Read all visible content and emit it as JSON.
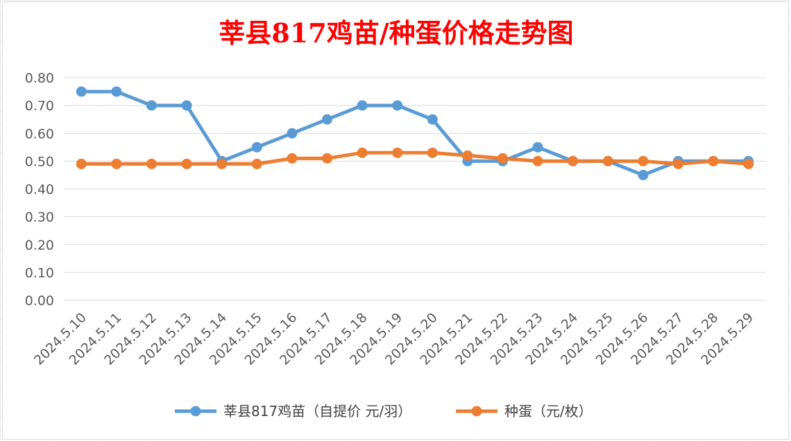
{
  "chart_data": {
    "type": "line",
    "title": "莘县817鸡苗/种蛋价格走势图",
    "title_color": "#ff0000",
    "categories": [
      "2024.5.10",
      "2024.5.11",
      "2024.5.12",
      "2024.5.13",
      "2024.5.14",
      "2024.5.15",
      "2024.5.16",
      "2024.5.17",
      "2024.5.18",
      "2024.5.19",
      "2024.5.20",
      "2024.5.21",
      "2024.5.22",
      "2024.5.23",
      "2024.5.24",
      "2024.5.25",
      "2024.5.26",
      "2024.5.27",
      "2024.5.28",
      "2024.5.29"
    ],
    "series": [
      {
        "name": "莘县817鸡苗（自提价 元/羽）",
        "color": "#5b9bd5",
        "values": [
          0.75,
          0.75,
          0.7,
          0.7,
          0.5,
          0.55,
          0.6,
          0.65,
          0.7,
          0.7,
          0.65,
          0.5,
          0.5,
          0.55,
          0.5,
          0.5,
          0.45,
          0.5,
          0.5,
          0.5
        ]
      },
      {
        "name": "种蛋（元/枚）",
        "color": "#ed7d31",
        "values": [
          0.49,
          0.49,
          0.49,
          0.49,
          0.49,
          0.49,
          0.51,
          0.51,
          0.53,
          0.53,
          0.53,
          0.52,
          0.51,
          0.5,
          0.5,
          0.5,
          0.5,
          0.49,
          0.5,
          0.49
        ]
      }
    ],
    "y_ticks": [
      "0.80",
      "0.70",
      "0.60",
      "0.50",
      "0.40",
      "0.30",
      "0.20",
      "0.10",
      "0.00"
    ],
    "ylim": [
      0,
      0.8
    ],
    "grid": true,
    "legend_position": "bottom"
  }
}
